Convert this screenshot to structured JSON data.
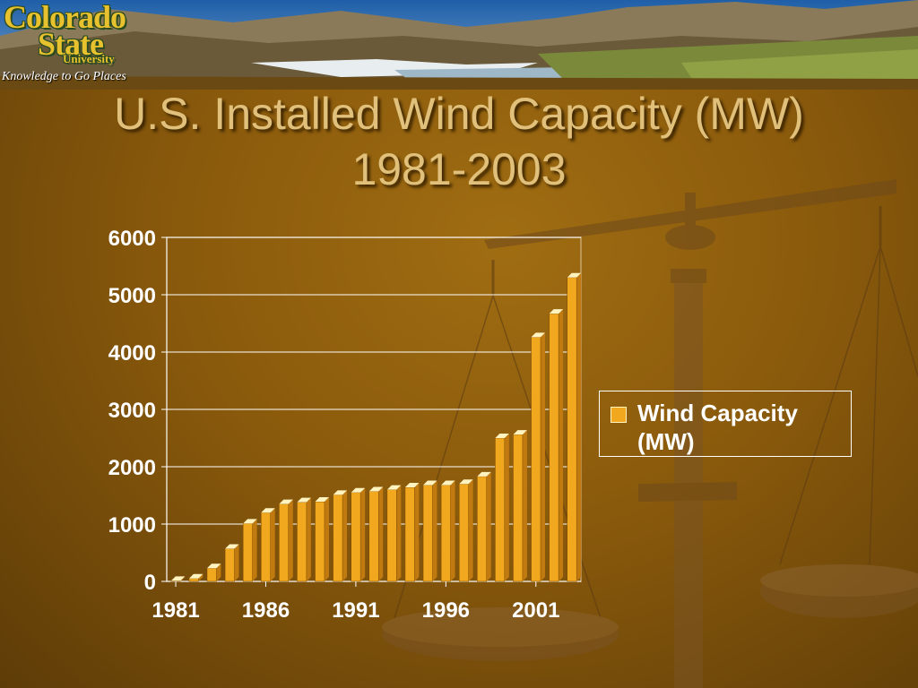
{
  "header": {
    "logo_line1": "Colorado",
    "logo_line2": "State",
    "logo_line3": "University",
    "tagline": "Knowledge to Go Places"
  },
  "slide": {
    "title_line1": "U.S. Installed Wind Capacity (MW)",
    "title_line2": "1981-2003"
  },
  "colors": {
    "bar": "#f2a81e",
    "bar_top": "#fff3c0",
    "grid": "#ffffff",
    "title": "#e0c07a"
  },
  "chart_data": {
    "type": "bar",
    "title": "U.S. Installed Wind Capacity (MW) 1981-2003",
    "series": [
      {
        "name": "Wind Capacity (MW)",
        "values": [
          10,
          50,
          230,
          570,
          1010,
          1200,
          1350,
          1380,
          1390,
          1510,
          1550,
          1570,
          1600,
          1640,
          1680,
          1680,
          1700,
          1830,
          2500,
          2560,
          4260,
          4670,
          5300
        ]
      }
    ],
    "x": [
      1981,
      1982,
      1983,
      1984,
      1985,
      1986,
      1987,
      1988,
      1989,
      1990,
      1991,
      1992,
      1993,
      1994,
      1995,
      1996,
      1997,
      1998,
      1999,
      2000,
      2001,
      2002,
      2003
    ],
    "x_tick_labels": [
      "1981",
      "1986",
      "1991",
      "1996",
      "2001"
    ],
    "y_tick_labels": [
      "0",
      "1000",
      "2000",
      "3000",
      "4000",
      "5000",
      "6000"
    ],
    "ylim": [
      0,
      6000
    ],
    "grid": true,
    "legend_position": "right",
    "xlabel": "",
    "ylabel": ""
  }
}
